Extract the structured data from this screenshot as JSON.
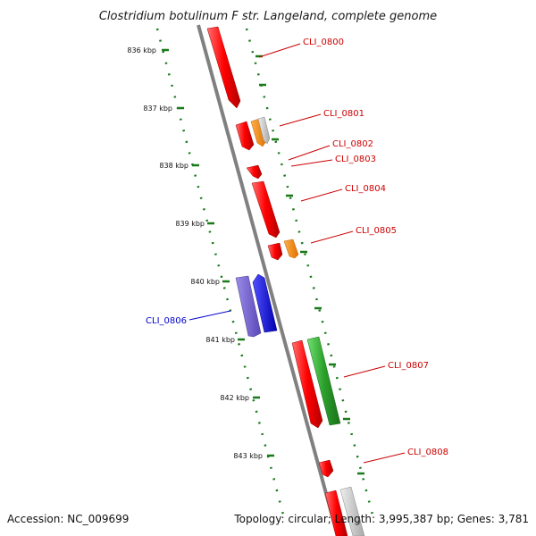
{
  "title": "Clostridium botulinum F str. Langeland, complete genome",
  "footer": {
    "accession": "Accession: NC_009699",
    "summary": "Topology: circular; Length: 3,995,387 bp; Genes: 3,781"
  },
  "ticks": [
    "836 kbp",
    "837 kbp",
    "838 kbp",
    "839 kbp",
    "840 kbp",
    "841 kbp",
    "842 kbp",
    "843 kbp"
  ],
  "colors": {
    "red": "#ff0000",
    "orange": "#ff8c00",
    "gray": "#c0c0c0",
    "blue": "#0000ff",
    "slate": "#6a5acd",
    "green": "#2ca02c",
    "backbone": "#808080",
    "dotted": "#1a7a1a",
    "label_red": "#cc0000",
    "label_blue": "#0000cc"
  },
  "genes": [
    {
      "label": "CLI_0800",
      "strand": "forward",
      "color": "red"
    },
    {
      "label": "CLI_0801",
      "strand": "forward",
      "color": "red"
    },
    {
      "label": "CLI_0802",
      "strand": "forward",
      "color": "orange"
    },
    {
      "label": "CLI_0803",
      "strand": "forward",
      "color": "gray"
    },
    {
      "label": "CLI_0804",
      "strand": "forward",
      "color": "red"
    },
    {
      "label": "CLI_0805",
      "strand": "forward",
      "color": "red"
    },
    {
      "label": "CLI_0806",
      "strand": "reverse",
      "color": "blue"
    },
    {
      "label": "CLI_0807",
      "strand": "forward",
      "color": "red"
    },
    {
      "label": "CLI_0808",
      "strand": "forward",
      "color": "red"
    }
  ]
}
